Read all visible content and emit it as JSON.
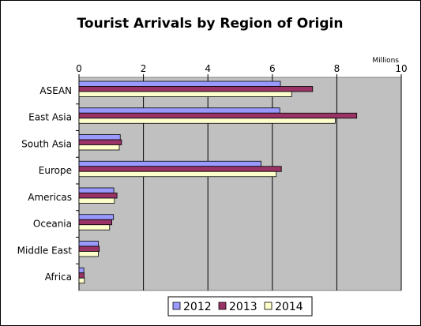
{
  "chart_data": {
    "type": "bar",
    "orientation": "horizontal",
    "title": "Tourist Arrivals by Region of Origin",
    "xlabel": "Millions",
    "ylabel": "",
    "xlim": [
      0,
      10
    ],
    "xticks": [
      0,
      2,
      4,
      6,
      8,
      10
    ],
    "grid": true,
    "legend_position": "bottom",
    "categories": [
      "ASEAN",
      "East Asia",
      "South Asia",
      "Europe",
      "Americas",
      "Oceania",
      "Middle East",
      "Africa"
    ],
    "series": [
      {
        "name": "2012",
        "color": "#9999ff",
        "values": [
          6.25,
          6.23,
          1.28,
          5.65,
          1.08,
          1.07,
          0.6,
          0.15
        ]
      },
      {
        "name": "2013",
        "color": "#993366",
        "values": [
          7.25,
          8.62,
          1.32,
          6.28,
          1.18,
          1.02,
          0.63,
          0.16
        ]
      },
      {
        "name": "2014",
        "color": "#ffffcc",
        "values": [
          6.6,
          7.95,
          1.25,
          6.12,
          1.1,
          0.95,
          0.6,
          0.17
        ]
      }
    ]
  }
}
